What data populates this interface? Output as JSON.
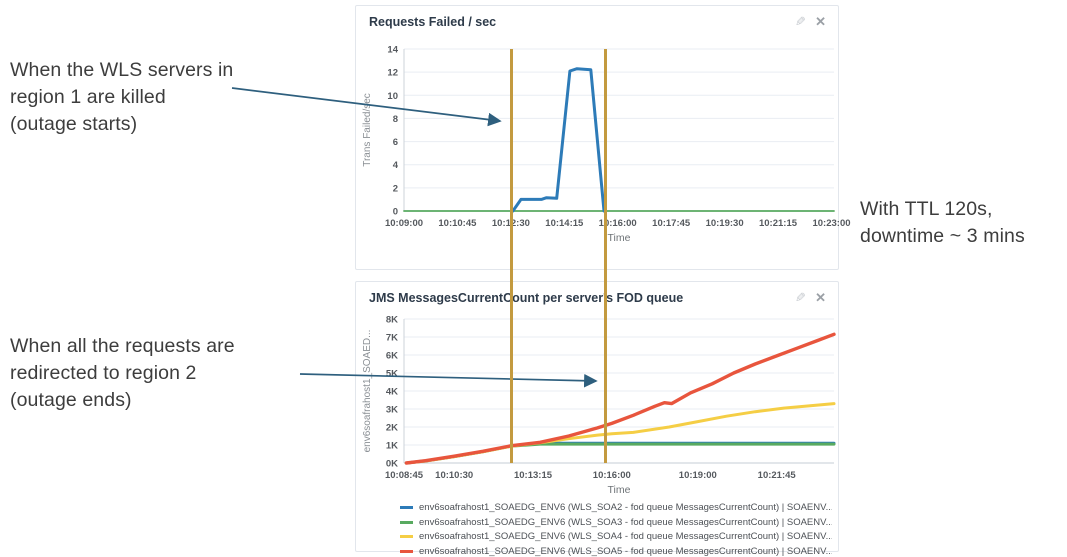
{
  "annotations": {
    "left_top": {
      "lines": [
        "When the WLS servers in",
        "region 1 are killed",
        "(outage starts)"
      ]
    },
    "left_bottom": {
      "lines": [
        "When all the requests are",
        "redirected to region 2",
        "(outage ends)"
      ]
    },
    "right": {
      "lines": [
        "With TTL 120s,",
        "downtime ~ 3 mins"
      ]
    }
  },
  "panels": {
    "icons": {
      "edit_glyph": "✎",
      "close_glyph": "✕"
    }
  },
  "colors": {
    "series_blue": "#2d7bb8",
    "series_green": "#58aa60",
    "series_yellow": "#f5ce45",
    "series_red": "#e8553d",
    "event_line": "#c39a3f",
    "arrow": "#2e5f7e"
  },
  "event_lines": [
    {
      "name": "outage-start",
      "approx_time": "10:12:30"
    },
    {
      "name": "outage-end",
      "approx_time": "10:16:00"
    }
  ],
  "chart_data": [
    {
      "type": "line",
      "title": "Requests Failed / sec",
      "xlabel": "Time",
      "ylabel": "Trans Failed/sec",
      "ylim": [
        0,
        14
      ],
      "xlim": [
        "10:09:00",
        "10:23:05"
      ],
      "grid": true,
      "yticks": [
        {
          "v": 0,
          "label": "0"
        },
        {
          "v": 2,
          "label": "2"
        },
        {
          "v": 4,
          "label": "4"
        },
        {
          "v": 6,
          "label": "6"
        },
        {
          "v": 8,
          "label": "8"
        },
        {
          "v": 10,
          "label": "10"
        },
        {
          "v": 12,
          "label": "12"
        },
        {
          "v": 14,
          "label": "14"
        }
      ],
      "xticks": [
        "10:09:00",
        "10:10:45",
        "10:12:30",
        "10:14:15",
        "10:16:00",
        "10:17:45",
        "10:19:30",
        "10:21:15",
        "10:23:00"
      ],
      "series": [
        {
          "color": "#58aa60",
          "width": 1.8,
          "points": [
            [
              "10:09:00",
              0
            ],
            [
              "10:23:05",
              0
            ]
          ]
        },
        {
          "color": "#2d7bb8",
          "width": 3,
          "points": [
            [
              "10:12:34",
              0
            ],
            [
              "10:12:50",
              1.0
            ],
            [
              "10:13:30",
              1.0
            ],
            [
              "10:13:40",
              1.15
            ],
            [
              "10:14:00",
              1.1
            ],
            [
              "10:14:26",
              12.1
            ],
            [
              "10:14:40",
              12.3
            ],
            [
              "10:15:07",
              12.2
            ],
            [
              "10:15:33",
              0
            ]
          ]
        }
      ]
    },
    {
      "type": "line",
      "title": "JMS MessagesCurrentCount per server's FOD queue",
      "xlabel": "Time",
      "ylabel": "env6soafrahost1_SOAED...",
      "ylim": [
        0,
        8000
      ],
      "xlim": [
        "10:08:45",
        "10:23:45"
      ],
      "grid": true,
      "yticks": [
        {
          "v": 0,
          "label": "0K"
        },
        {
          "v": 1000,
          "label": "1K"
        },
        {
          "v": 2000,
          "label": "2K"
        },
        {
          "v": 3000,
          "label": "3K"
        },
        {
          "v": 4000,
          "label": "4K"
        },
        {
          "v": 5000,
          "label": "5K"
        },
        {
          "v": 6000,
          "label": "6K"
        },
        {
          "v": 7000,
          "label": "7K"
        },
        {
          "v": 8000,
          "label": "8K"
        }
      ],
      "xticks": [
        "10:08:45",
        "10:10:30",
        "10:13:15",
        "10:16:00",
        "10:19:00",
        "10:21:45"
      ],
      "series": [
        {
          "name": "env6soafrahost1_SOAEDG_ENV6 (WLS_SOA2 - fod queue MessagesCurrentCount) | SOAENV...",
          "color": "#2d7bb8",
          "width": 3,
          "points": [
            [
              "10:08:50",
              0
            ],
            [
              "10:09:30",
              120
            ],
            [
              "10:10:30",
              360
            ],
            [
              "10:11:30",
              630
            ],
            [
              "10:12:30",
              950
            ],
            [
              "10:13:30",
              1100
            ],
            [
              "10:23:45",
              1100
            ]
          ]
        },
        {
          "name": "env6soafrahost1_SOAEDG_ENV6 (WLS_SOA3 - fod queue MessagesCurrentCount) | SOAENV...",
          "color": "#58aa60",
          "width": 3,
          "points": [
            [
              "10:08:50",
              0
            ],
            [
              "10:09:30",
              110
            ],
            [
              "10:10:30",
              350
            ],
            [
              "10:11:30",
              620
            ],
            [
              "10:12:30",
              940
            ],
            [
              "10:13:30",
              1050
            ],
            [
              "10:23:45",
              1050
            ]
          ]
        },
        {
          "name": "env6soafrahost1_SOAEDG_ENV6 (WLS_SOA4 - fod queue MessagesCurrentCount) | SOAENV...",
          "color": "#f5ce45",
          "width": 3,
          "points": [
            [
              "10:08:50",
              0
            ],
            [
              "10:09:30",
              110
            ],
            [
              "10:10:30",
              350
            ],
            [
              "10:11:30",
              620
            ],
            [
              "10:12:30",
              940
            ],
            [
              "10:13:30",
              1120
            ],
            [
              "10:14:30",
              1350
            ],
            [
              "10:15:30",
              1550
            ],
            [
              "10:16:00",
              1630
            ],
            [
              "10:16:45",
              1700
            ],
            [
              "10:18:00",
              2000
            ],
            [
              "10:19:00",
              2300
            ],
            [
              "10:20:00",
              2600
            ],
            [
              "10:21:00",
              2850
            ],
            [
              "10:22:00",
              3050
            ],
            [
              "10:23:45",
              3300
            ]
          ]
        },
        {
          "name": "env6soafrahost1_SOAEDG_ENV6 (WLS_SOA5 - fod queue MessagesCurrentCount) | SOAENV...",
          "color": "#e8553d",
          "width": 3.4,
          "points": [
            [
              "10:08:50",
              0
            ],
            [
              "10:09:30",
              130
            ],
            [
              "10:10:30",
              380
            ],
            [
              "10:11:30",
              650
            ],
            [
              "10:12:30",
              960
            ],
            [
              "10:13:30",
              1150
            ],
            [
              "10:14:30",
              1500
            ],
            [
              "10:15:30",
              1950
            ],
            [
              "10:16:00",
              2200
            ],
            [
              "10:16:45",
              2650
            ],
            [
              "10:17:30",
              3150
            ],
            [
              "10:17:50",
              3350
            ],
            [
              "10:18:05",
              3300
            ],
            [
              "10:18:45",
              3900
            ],
            [
              "10:19:30",
              4400
            ],
            [
              "10:20:15",
              5000
            ],
            [
              "10:21:00",
              5500
            ],
            [
              "10:21:45",
              5950
            ],
            [
              "10:22:30",
              6400
            ],
            [
              "10:23:10",
              6800
            ],
            [
              "10:23:45",
              7150
            ]
          ]
        }
      ]
    }
  ]
}
